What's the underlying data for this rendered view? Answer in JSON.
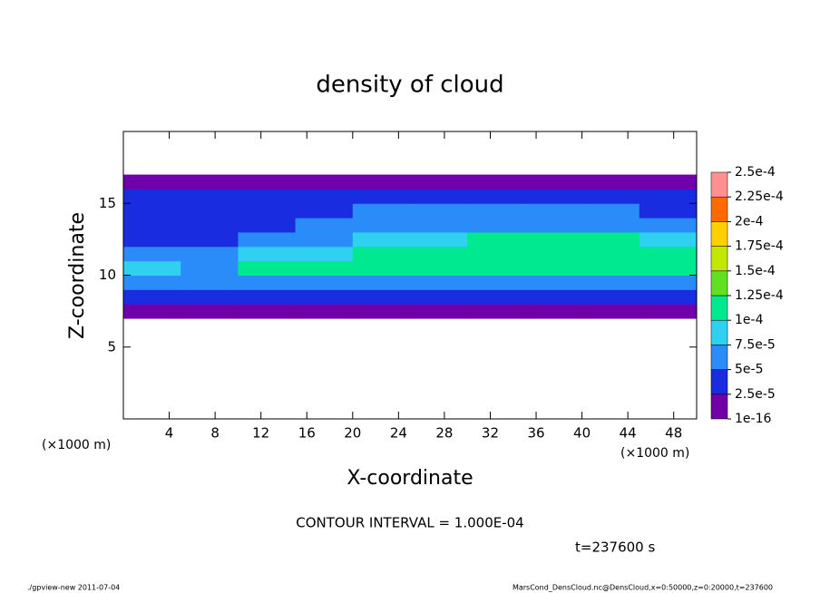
{
  "chart_data": {
    "type": "contourf",
    "title": "density of cloud",
    "x_label": "X-coordinate",
    "y_label": "Z-coordinate",
    "x_unit_left": "(×1000 m)",
    "x_unit_right": "(×1000 m)",
    "contour_note": "CONTOUR INTERVAL = 1.000E-04",
    "time_note": "t=237600 s",
    "footer_left": "./gpview-new   2011-07-04",
    "footer_right": "MarsCond_DensCloud.nc@DensCloud,x=0:50000,z=0:20000,t=237600",
    "xlim": [
      0,
      50
    ],
    "ylim": [
      0,
      20
    ],
    "xticks": [
      4,
      8,
      12,
      16,
      20,
      24,
      28,
      32,
      36,
      40,
      44,
      48
    ],
    "yticks": [
      5,
      10,
      15
    ],
    "x_edges": [
      0,
      5,
      10,
      15,
      20,
      25,
      30,
      35,
      40,
      45,
      50
    ],
    "z_edges": [
      7,
      8,
      9,
      10,
      11,
      12,
      13,
      14,
      15,
      16,
      17
    ],
    "z": [
      [
        1e-05,
        1e-05,
        1e-05,
        1e-05,
        1e-05,
        1e-05,
        1e-05,
        1e-05,
        1e-05,
        1e-05
      ],
      [
        3e-05,
        3e-05,
        3e-05,
        3e-05,
        3e-05,
        3e-05,
        3e-05,
        3e-05,
        3e-05,
        3e-05
      ],
      [
        6e-05,
        6e-05,
        6e-05,
        6e-05,
        6e-05,
        6e-05,
        6e-05,
        6e-05,
        6e-05,
        6e-05
      ],
      [
        9e-05,
        7e-05,
        0.000105,
        0.000105,
        0.000105,
        0.000105,
        0.000105,
        0.000105,
        0.000105,
        0.000105
      ],
      [
        6e-05,
        5e-05,
        8e-05,
        9e-05,
        0.000105,
        0.000105,
        0.00011,
        0.00011,
        0.00011,
        0.00011
      ],
      [
        4e-05,
        4e-05,
        5e-05,
        6e-05,
        8e-05,
        9e-05,
        0.000105,
        0.000105,
        0.000105,
        9e-05
      ],
      [
        3e-05,
        3e-05,
        4e-05,
        5e-05,
        6e-05,
        6e-05,
        7e-05,
        7e-05,
        7e-05,
        6e-05
      ],
      [
        3e-05,
        3e-05,
        3e-05,
        4e-05,
        5e-05,
        5e-05,
        5e-05,
        5e-05,
        5e-05,
        4e-05
      ],
      [
        3e-05,
        3e-05,
        3e-05,
        3e-05,
        3e-05,
        3e-05,
        3e-05,
        3e-05,
        3e-05,
        3e-05
      ],
      [
        1e-05,
        1e-05,
        1e-05,
        1e-05,
        1e-05,
        1e-05,
        1e-05,
        1e-05,
        1e-05,
        1e-05
      ]
    ],
    "colorbar_ticks": [
      {
        "value": 1e-16,
        "label": "1e-16"
      },
      {
        "value": 2.5e-05,
        "label": "2.5e-5"
      },
      {
        "value": 5e-05,
        "label": "5e-5"
      },
      {
        "value": 7.5e-05,
        "label": "7.5e-5"
      },
      {
        "value": 0.0001,
        "label": "1e-4"
      },
      {
        "value": 0.000125,
        "label": "1.25e-4"
      },
      {
        "value": 0.00015,
        "label": "1.5e-4"
      },
      {
        "value": 0.000175,
        "label": "1.75e-4"
      },
      {
        "value": 0.0002,
        "label": "2e-4"
      },
      {
        "value": 0.000225,
        "label": "2.25e-4"
      },
      {
        "value": 0.00025,
        "label": "2.5e-4"
      }
    ],
    "colors": [
      "#7000a8",
      "#1a2ce0",
      "#2a8cf8",
      "#30d0f0",
      "#00e890",
      "#60e020",
      "#c0e800",
      "#ffd000",
      "#ff6a00",
      "#ff9090"
    ]
  }
}
